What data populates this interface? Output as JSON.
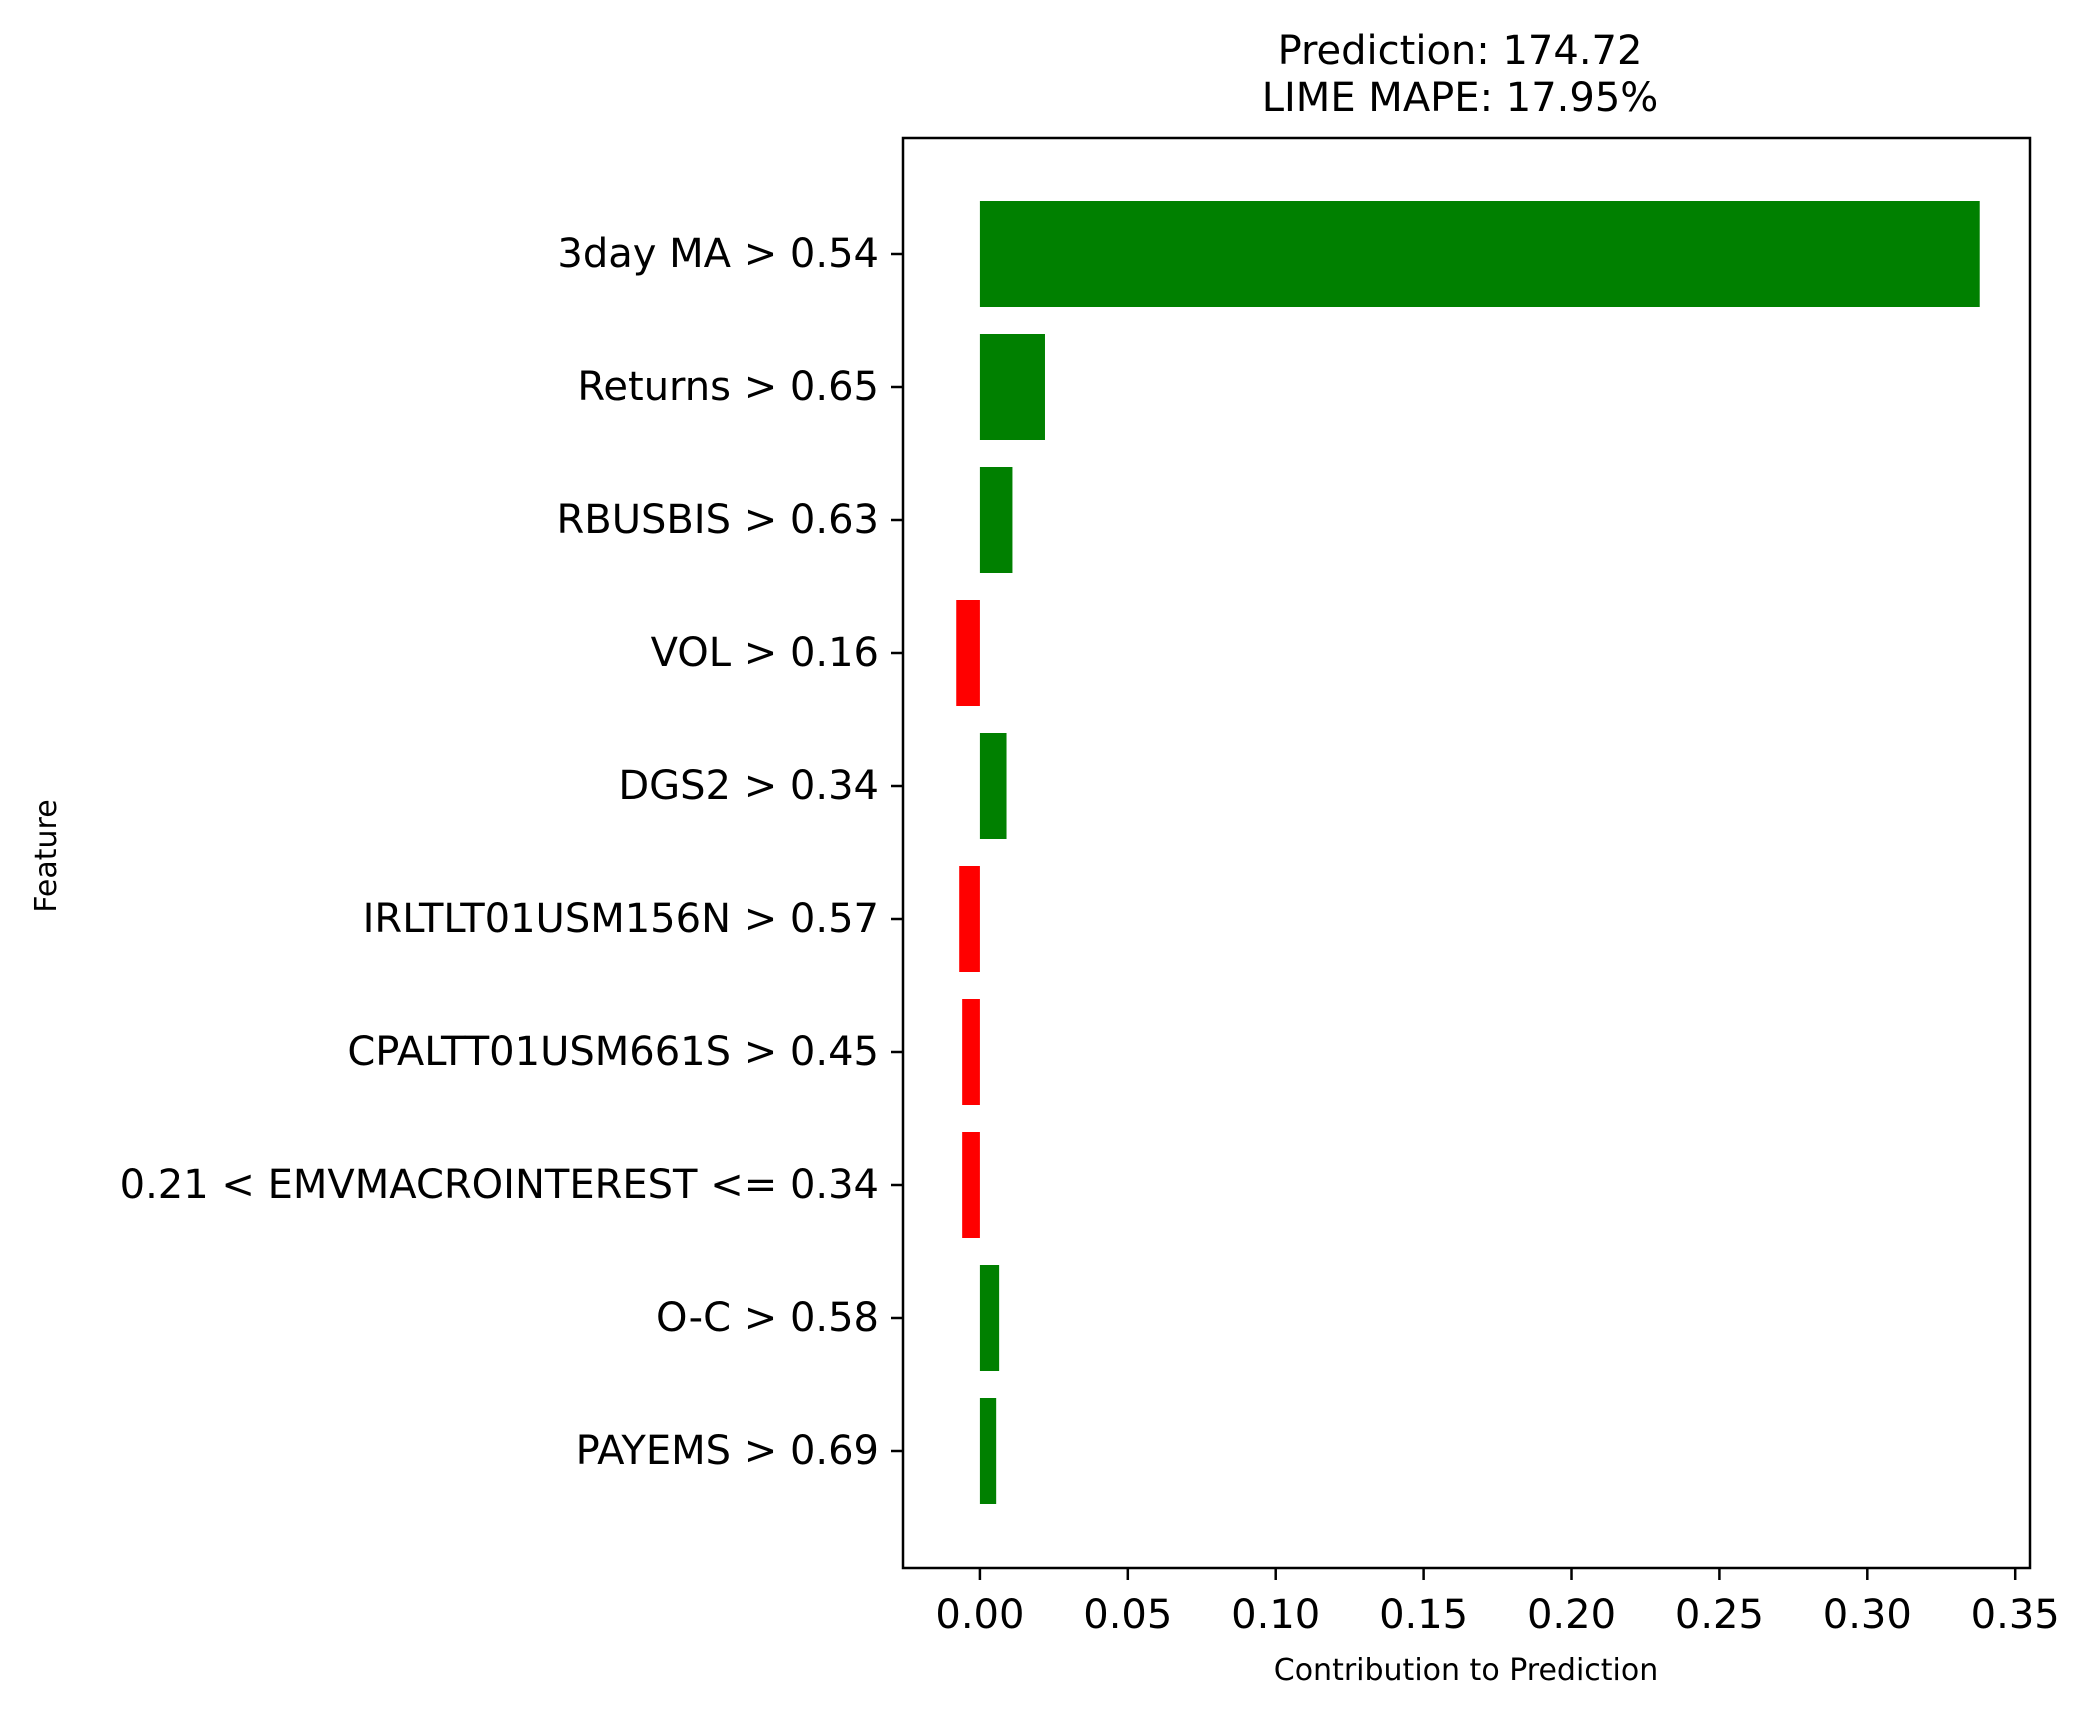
{
  "chart_data": {
    "type": "bar",
    "orientation": "horizontal",
    "title_lines": [
      "Prediction: 174.72",
      "LIME MAPE: 17.95%"
    ],
    "xlabel": "Contribution to Prediction",
    "ylabel": "Feature",
    "xlim": [
      -0.026,
      0.355
    ],
    "xticks": [
      0.0,
      0.05,
      0.1,
      0.15,
      0.2,
      0.25,
      0.3,
      0.35
    ],
    "xtick_labels": [
      "0.00",
      "0.05",
      "0.10",
      "0.15",
      "0.20",
      "0.25",
      "0.30",
      "0.35"
    ],
    "grid": false,
    "legend": "none",
    "positive_color": "#008000",
    "negative_color": "#ff0000",
    "categories": [
      "3day MA > 0.54",
      "Returns > 0.65",
      "RBUSBIS > 0.63",
      "VOL > 0.16",
      "DGS2 > 0.34",
      "IRLTLT01USM156N > 0.57",
      "CPALTT01USM661S > 0.45",
      "0.21 < EMVMACROINTEREST <= 0.34",
      "O-C > 0.58",
      "PAYEMS > 0.69"
    ],
    "values": [
      0.338,
      0.022,
      0.011,
      -0.008,
      0.009,
      -0.007,
      -0.006,
      -0.006,
      0.0065,
      0.0055
    ]
  }
}
